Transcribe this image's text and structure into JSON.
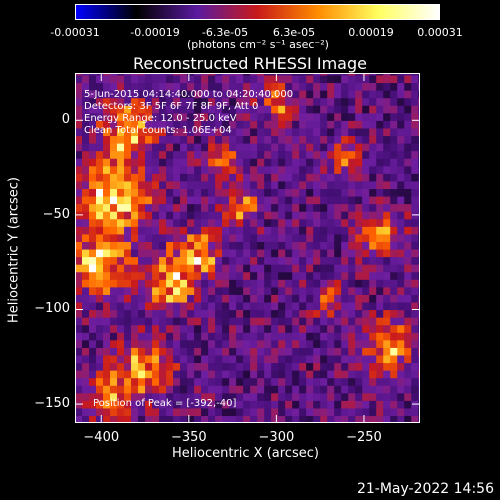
{
  "colorbar": {
    "ticks": [
      "-0.00031",
      "-0.00019",
      "-6.3e-05",
      "6.3e-05",
      "0.00019",
      "0.00031"
    ],
    "unit_label": "(photons cm⁻² s⁻¹ asec⁻²)",
    "colors": [
      "#0000ff",
      "#000000",
      "#5a1aa0",
      "#c81a1a",
      "#ff8c00",
      "#ffff60",
      "#ffffff"
    ]
  },
  "chart_data": {
    "type": "heatmap",
    "title": "Reconstructed RHESSI Image",
    "xlabel": "Heliocentric X (arcsec)",
    "ylabel": "Heliocentric Y (arcsec)",
    "xlim": [
      -415,
      -218
    ],
    "ylim": [
      -160,
      25
    ],
    "x_ticks": [
      -400,
      -350,
      -300,
      -250
    ],
    "y_ticks": [
      0,
      -50,
      -100,
      -150
    ],
    "value_range": [
      -0.00031,
      0.00031
    ],
    "annotations": [
      "5-Jun-2015 04:14:40.000 to 04:20:40.000",
      "Detectors: 3F 5F 6F 7F 8F 9F, Att 0",
      "Energy Range: 12.0 - 25.0 keV",
      "Clean     Total counts: 1.06E+04"
    ],
    "peak_label": "Position of Peak = [-392,-40]",
    "peak_position": [
      -392,
      -40
    ]
  },
  "timestamp": "21-May-2022 14:56"
}
